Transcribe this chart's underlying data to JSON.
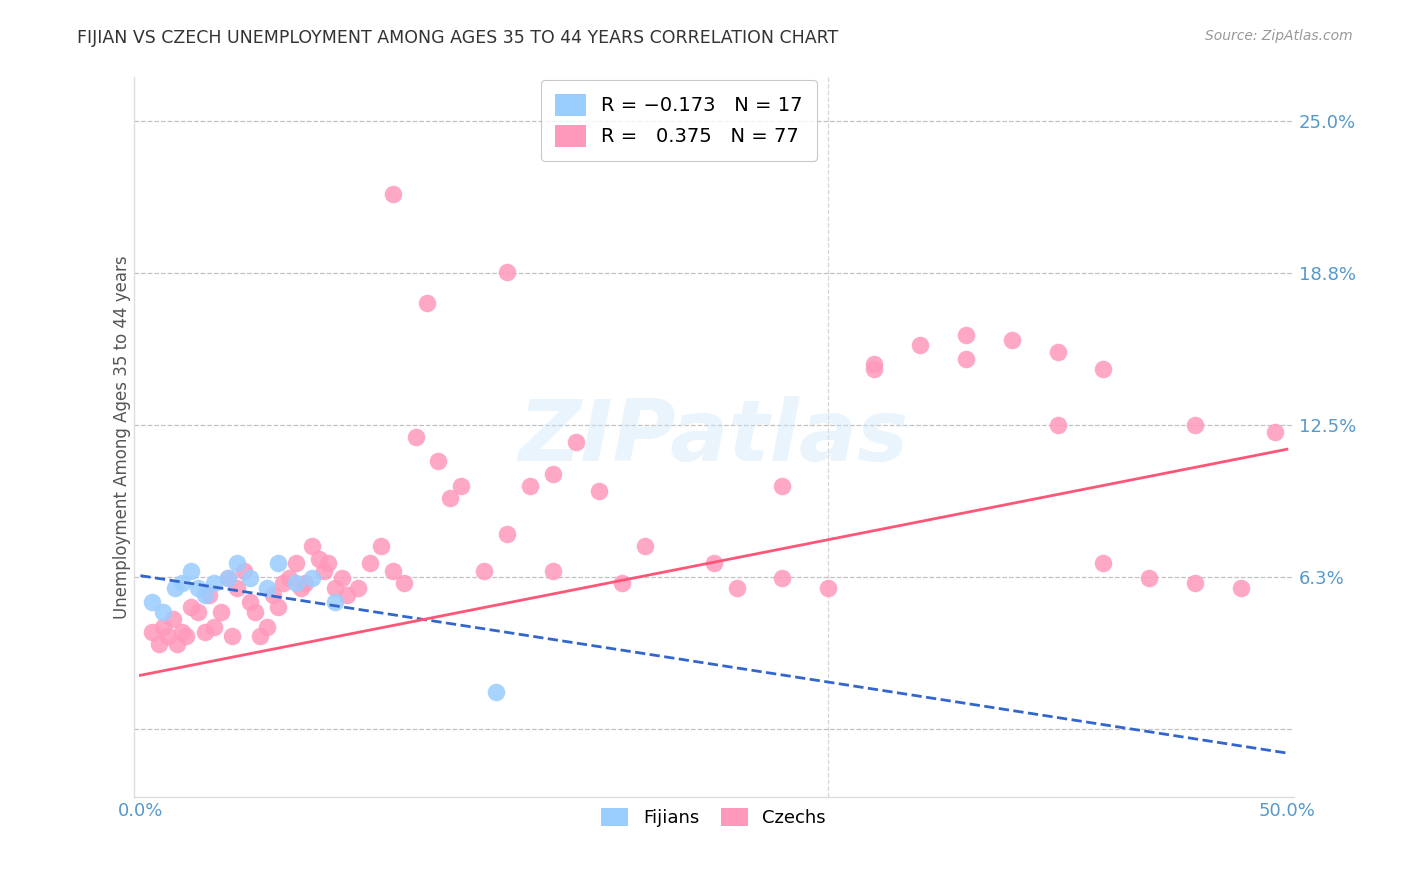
{
  "title": "FIJIAN VS CZECH UNEMPLOYMENT AMONG AGES 35 TO 44 YEARS CORRELATION CHART",
  "source": "Source: ZipAtlas.com",
  "ylabel": "Unemployment Among Ages 35 to 44 years",
  "xlim": [
    -0.003,
    0.503
  ],
  "ylim": [
    -0.028,
    0.268
  ],
  "ytick_positions": [
    0.0,
    0.0625,
    0.125,
    0.1875,
    0.25
  ],
  "ytick_labels": [
    "",
    "6.3%",
    "12.5%",
    "18.8%",
    "25.0%"
  ],
  "xtick_positions": [
    0.0,
    0.1,
    0.2,
    0.3,
    0.4,
    0.5
  ],
  "xtick_labels": [
    "0.0%",
    "",
    "",
    "",
    "",
    "50.0%"
  ],
  "grid_color": "#bbbbbb",
  "bg_color": "#ffffff",
  "fijian_dot_color": "#99ccff",
  "czech_dot_color": "#ff99bb",
  "fijian_line_color": "#3366cc",
  "czech_line_color": "#ff5577",
  "tick_color": "#5599cc",
  "title_color": "#333333",
  "source_color": "#999999",
  "fijian_x": [
    0.005,
    0.01,
    0.015,
    0.018,
    0.022,
    0.025,
    0.028,
    0.032,
    0.038,
    0.042,
    0.048,
    0.055,
    0.06,
    0.068,
    0.075,
    0.085,
    0.155
  ],
  "fijian_y": [
    0.052,
    0.048,
    0.058,
    0.06,
    0.065,
    0.058,
    0.055,
    0.06,
    0.062,
    0.068,
    0.062,
    0.058,
    0.068,
    0.06,
    0.062,
    0.052,
    0.015
  ],
  "czech_x": [
    0.005,
    0.008,
    0.01,
    0.012,
    0.014,
    0.016,
    0.018,
    0.02,
    0.022,
    0.025,
    0.028,
    0.03,
    0.032,
    0.035,
    0.038,
    0.04,
    0.042,
    0.045,
    0.048,
    0.05,
    0.052,
    0.055,
    0.058,
    0.06,
    0.062,
    0.065,
    0.068,
    0.07,
    0.072,
    0.075,
    0.078,
    0.08,
    0.082,
    0.085,
    0.088,
    0.09,
    0.095,
    0.1,
    0.105,
    0.11,
    0.115,
    0.12,
    0.125,
    0.13,
    0.135,
    0.14,
    0.15,
    0.16,
    0.17,
    0.18,
    0.19,
    0.2,
    0.21,
    0.22,
    0.25,
    0.26,
    0.28,
    0.3,
    0.32,
    0.34,
    0.36,
    0.38,
    0.4,
    0.42,
    0.44,
    0.46,
    0.48,
    0.495,
    0.11,
    0.16,
    0.18,
    0.28,
    0.32,
    0.36,
    0.4,
    0.42,
    0.46
  ],
  "czech_y": [
    0.04,
    0.035,
    0.042,
    0.038,
    0.045,
    0.035,
    0.04,
    0.038,
    0.05,
    0.048,
    0.04,
    0.055,
    0.042,
    0.048,
    0.062,
    0.038,
    0.058,
    0.065,
    0.052,
    0.048,
    0.038,
    0.042,
    0.055,
    0.05,
    0.06,
    0.062,
    0.068,
    0.058,
    0.06,
    0.075,
    0.07,
    0.065,
    0.068,
    0.058,
    0.062,
    0.055,
    0.058,
    0.068,
    0.075,
    0.065,
    0.06,
    0.12,
    0.175,
    0.11,
    0.095,
    0.1,
    0.065,
    0.08,
    0.1,
    0.105,
    0.118,
    0.098,
    0.06,
    0.075,
    0.068,
    0.058,
    0.1,
    0.058,
    0.148,
    0.158,
    0.152,
    0.16,
    0.155,
    0.148,
    0.062,
    0.125,
    0.058,
    0.122,
    0.22,
    0.188,
    0.065,
    0.062,
    0.15,
    0.162,
    0.125,
    0.068,
    0.06
  ],
  "fijian_trend_x": [
    0.0,
    0.5
  ],
  "fijian_trend_y": [
    0.063,
    -0.01
  ],
  "czech_trend_x": [
    0.0,
    0.5
  ],
  "czech_trend_y": [
    0.022,
    0.115
  ]
}
